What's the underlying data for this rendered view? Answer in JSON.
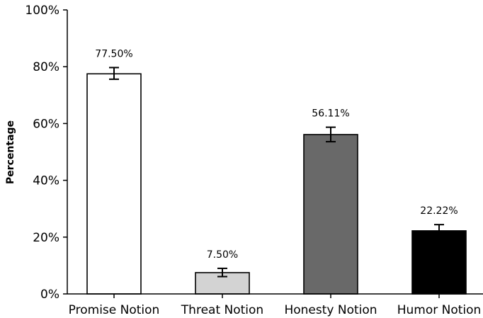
{
  "chart_data": {
    "type": "bar",
    "title": "",
    "xlabel": "",
    "ylabel": "Percentage",
    "categories": [
      "Promise Notion",
      "Threat Notion",
      "Honesty Notion",
      "Humor Notion"
    ],
    "values": [
      77.5,
      7.5,
      56.11,
      22.22
    ],
    "value_labels": [
      "77.50%",
      "7.50%",
      "56.11%",
      "22.22%"
    ],
    "error_low": [
      75.6,
      6.1,
      53.6,
      20.5
    ],
    "error_high": [
      79.7,
      9.0,
      58.7,
      24.4
    ],
    "bar_colors": [
      "#ffffff",
      "#d3d3d3",
      "#696969",
      "#000000"
    ],
    "bar_edge_color": "#000000",
    "ylim": [
      0,
      100
    ],
    "yticks": [
      0,
      20,
      40,
      60,
      80,
      100
    ],
    "ytick_labels": [
      "0%",
      "20%",
      "40%",
      "60%",
      "80%",
      "100%"
    ],
    "grid": false,
    "legend": "none"
  }
}
